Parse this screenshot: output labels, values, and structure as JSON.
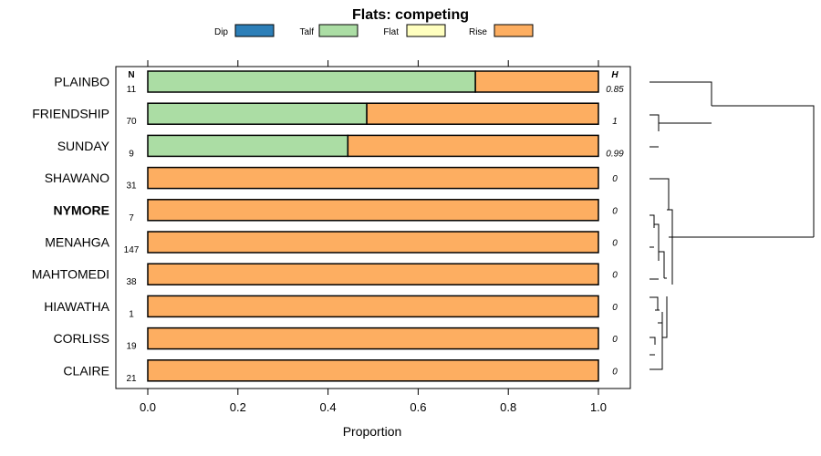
{
  "chart_data": {
    "type": "bar",
    "subtype": "stacked-horizontal-proportion",
    "title": "Flats: competing",
    "xlabel": "Proportion",
    "xlim": [
      0,
      1
    ],
    "xticks": [
      0.0,
      0.2,
      0.4,
      0.6,
      0.8,
      1.0
    ],
    "xtick_labels": [
      "0.0",
      "0.2",
      "0.4",
      "0.6",
      "0.8",
      "1.0"
    ],
    "n_header": "N",
    "h_header": "H",
    "legend": [
      {
        "name": "Dip",
        "color": "#2d7fb8"
      },
      {
        "name": "Talf",
        "color": "#abdda4"
      },
      {
        "name": "Flat",
        "color": "#ffffbf"
      },
      {
        "name": "Rise",
        "color": "#fdae61"
      }
    ],
    "categories": [
      "PLAINBO",
      "FRIENDSHIP",
      "SUNDAY",
      "SHAWANO",
      "NYMORE",
      "MENAHGA",
      "MAHTOMEDI",
      "HIAWATHA",
      "CORLISS",
      "CLAIRE"
    ],
    "highlighted": [
      "NYMORE"
    ],
    "n": [
      "11",
      "70",
      "9",
      "31",
      "7",
      "147",
      "38",
      "1",
      "19",
      "21"
    ],
    "h": [
      "0.85",
      "1",
      "0.99",
      "0",
      "0",
      "0",
      "0",
      "0",
      "0",
      "0"
    ],
    "series": [
      {
        "name": "Dip",
        "values": [
          0,
          0,
          0,
          0,
          0,
          0,
          0,
          0,
          0,
          0
        ]
      },
      {
        "name": "Talf",
        "values": [
          0.727,
          0.486,
          0.444,
          0,
          0,
          0,
          0,
          0,
          0,
          0
        ]
      },
      {
        "name": "Flat",
        "values": [
          0,
          0,
          0,
          0,
          0,
          0,
          0,
          0,
          0,
          0
        ]
      },
      {
        "name": "Rise",
        "values": [
          0.273,
          0.514,
          0.556,
          1,
          1,
          1,
          1,
          1,
          1,
          1
        ]
      }
    ]
  }
}
